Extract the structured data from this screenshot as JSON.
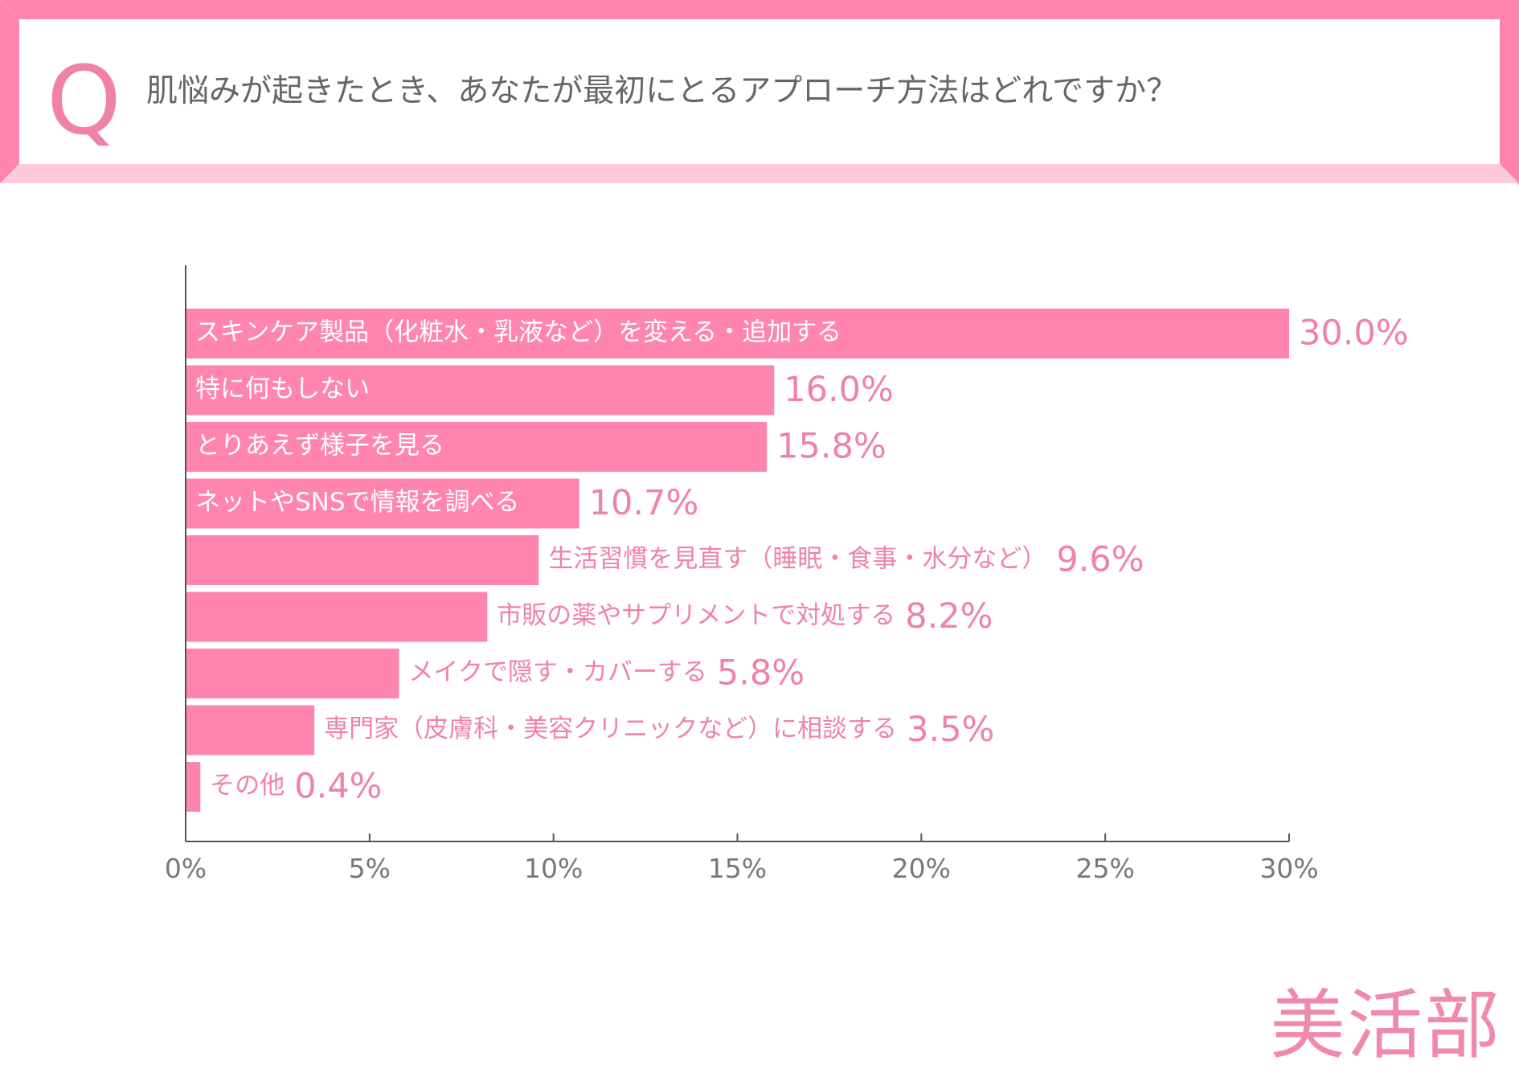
{
  "header": {
    "q_letter": "Q",
    "question": "肌悩みが起きたとき、あなたが最初にとるアプローチ方法はどれですか？"
  },
  "brand": "美活部",
  "colors": {
    "bar": "#ff85ac",
    "accent": "#ff85ac",
    "accent_light": "#ffc9dc",
    "label_inside": "#ffffff",
    "label_outside": "#ef82a6",
    "axis": "#555555"
  },
  "chart_data": {
    "type": "bar",
    "orientation": "horizontal",
    "categories": [
      "スキンケア製品（化粧水・乳液など）を変える・追加する",
      "特に何もしない",
      "とりあえず様子を見る",
      "ネットやSNSで情報を調べる",
      "生活習慣を見直す（睡眠・食事・水分など）",
      "市販の薬やサプリメントで対処する",
      "メイクで隠す・カバーする",
      "専門家（皮膚科・美容クリニックなど）に相談する",
      "その他"
    ],
    "values": [
      30.0,
      16.0,
      15.8,
      10.7,
      9.6,
      8.2,
      5.8,
      3.5,
      0.4
    ],
    "value_labels": [
      "30.0%",
      "16.0%",
      "15.8%",
      "10.7%",
      "9.6%",
      "8.2%",
      "5.8%",
      "3.5%",
      "0.4%"
    ],
    "label_inside": [
      true,
      true,
      true,
      true,
      false,
      false,
      false,
      false,
      false
    ],
    "xlim": [
      0,
      30
    ],
    "ticks": [
      0,
      5,
      10,
      15,
      20,
      25,
      30
    ],
    "tick_labels": [
      "0%",
      "5%",
      "10%",
      "15%",
      "20%",
      "25%",
      "30%"
    ],
    "grid": false
  }
}
